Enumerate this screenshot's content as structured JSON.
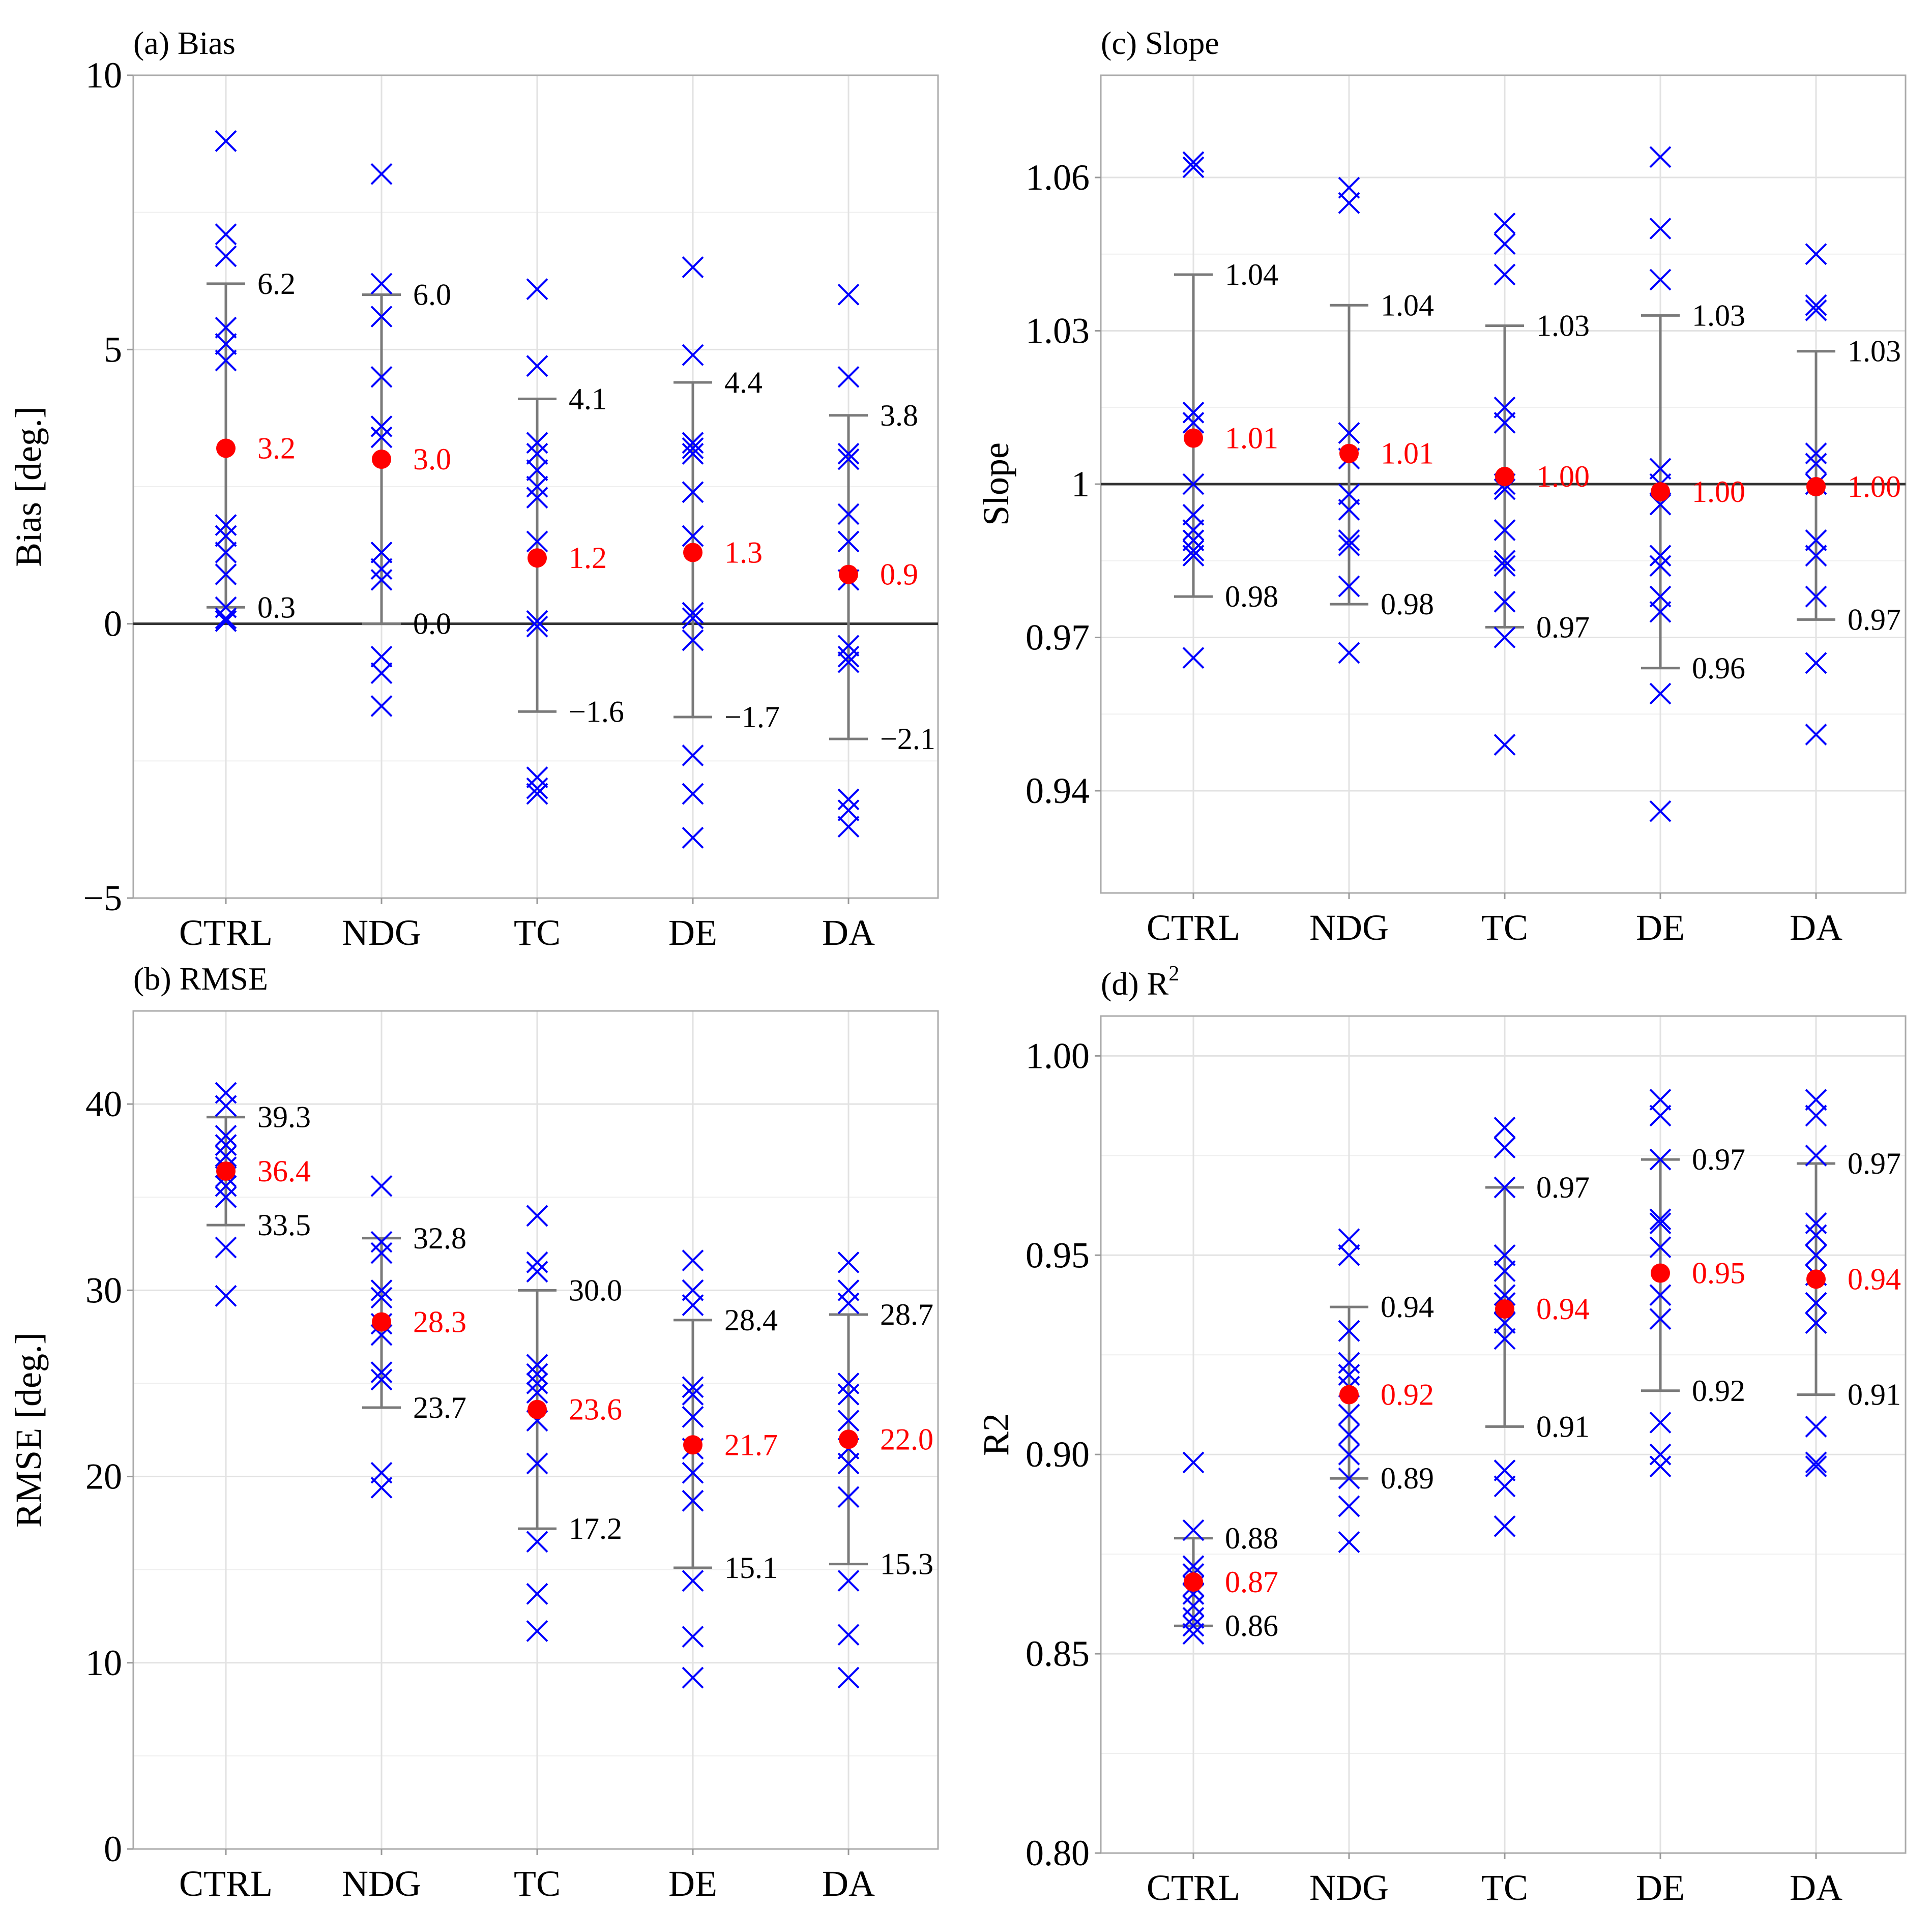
{
  "colors": {
    "crosses": "#0000ff",
    "mean": "#ff0000",
    "errorbar": "#7a7a7a",
    "refline": "#333333"
  },
  "chart_data": [
    {
      "id": "bias",
      "type": "scatter",
      "title": "(a) Bias",
      "ylabel": "Bias [deg.]",
      "categories": [
        "CTRL",
        "NDG",
        "TC",
        "DE",
        "DA"
      ],
      "ylim": [
        -5.0,
        10.0
      ],
      "yticks": [
        -5,
        0,
        5,
        10
      ],
      "ytick_labels": [
        "−5",
        "0",
        "5",
        "10"
      ],
      "reference_line": 0,
      "series": [
        {
          "category": "CTRL",
          "mean": 3.2,
          "upper": 6.2,
          "lower": 0.3,
          "mean_label": "3.2",
          "upper_label": "6.2",
          "lower_label": "0.3",
          "points": [
            8.8,
            7.1,
            6.7,
            5.4,
            5.1,
            4.8,
            1.8,
            1.6,
            1.3,
            0.9,
            0.3,
            0.1,
            0.05
          ]
        },
        {
          "category": "NDG",
          "mean": 3.0,
          "upper": 6.0,
          "lower": 0.0,
          "mean_label": "3.0",
          "upper_label": "6.0",
          "lower_label": "0.0",
          "points": [
            8.2,
            6.2,
            5.6,
            4.5,
            3.6,
            3.4,
            1.3,
            1.0,
            0.8,
            -0.6,
            -0.9,
            -1.5
          ]
        },
        {
          "category": "TC",
          "mean": 1.2,
          "upper": 4.1,
          "lower": -1.6,
          "mean_label": "1.2",
          "upper_label": "4.1",
          "lower_label": "−1.6",
          "points": [
            6.1,
            4.7,
            3.3,
            3.1,
            2.8,
            2.5,
            2.3,
            1.5,
            0.05,
            -0.05,
            -2.8,
            -3.0,
            -3.1
          ]
        },
        {
          "category": "DE",
          "mean": 1.3,
          "upper": 4.4,
          "lower": -1.7,
          "mean_label": "1.3",
          "upper_label": "4.4",
          "lower_label": "−1.7",
          "points": [
            6.5,
            4.9,
            3.3,
            3.2,
            3.1,
            2.4,
            1.6,
            0.2,
            0.1,
            -0.3,
            -2.4,
            -3.1,
            -3.9
          ]
        },
        {
          "category": "DA",
          "mean": 0.9,
          "upper": 3.8,
          "lower": -2.1,
          "mean_label": "0.9",
          "upper_label": "3.8",
          "lower_label": "−2.1",
          "points": [
            6.0,
            4.5,
            3.1,
            3.0,
            2.0,
            1.5,
            0.8,
            -0.4,
            -0.6,
            -0.7,
            -3.2,
            -3.4,
            -3.7
          ]
        }
      ]
    },
    {
      "id": "rmse",
      "type": "scatter",
      "title": "(b) RMSE",
      "ylabel": "RMSE [deg.]",
      "categories": [
        "CTRL",
        "NDG",
        "TC",
        "DE",
        "DA"
      ],
      "ylim": [
        0,
        45
      ],
      "yticks": [
        0,
        10,
        20,
        30,
        40
      ],
      "ytick_labels": [
        "0",
        "10",
        "20",
        "30",
        "40"
      ],
      "series": [
        {
          "category": "CTRL",
          "mean": 36.4,
          "upper": 39.3,
          "lower": 33.5,
          "mean_label": "36.4",
          "upper_label": "39.3",
          "lower_label": "33.5",
          "points": [
            40.6,
            39.9,
            38.3,
            37.8,
            37.2,
            36.6,
            36.1,
            35.6,
            35.0,
            32.3,
            29.7
          ]
        },
        {
          "category": "NDG",
          "mean": 28.3,
          "upper": 32.8,
          "lower": 23.7,
          "mean_label": "28.3",
          "upper_label": "32.8",
          "lower_label": "23.7",
          "points": [
            35.6,
            32.6,
            32.0,
            30.0,
            29.6,
            28.2,
            27.6,
            25.6,
            25.2,
            20.2,
            19.4
          ]
        },
        {
          "category": "TC",
          "mean": 23.6,
          "upper": 30.0,
          "lower": 17.2,
          "mean_label": "23.6",
          "upper_label": "30.0",
          "lower_label": "17.2",
          "points": [
            34.0,
            31.5,
            31.0,
            26.0,
            25.5,
            25.0,
            24.5,
            23.0,
            20.7,
            16.5,
            13.7,
            11.7
          ]
        },
        {
          "category": "DE",
          "mean": 21.7,
          "upper": 28.4,
          "lower": 15.1,
          "mean_label": "21.7",
          "upper_label": "28.4",
          "lower_label": "15.1",
          "points": [
            31.6,
            30.0,
            29.2,
            24.8,
            24.4,
            23.2,
            21.5,
            20.2,
            18.7,
            14.4,
            11.4,
            9.2
          ]
        },
        {
          "category": "DA",
          "mean": 22.0,
          "upper": 28.7,
          "lower": 15.3,
          "mean_label": "22.0",
          "upper_label": "28.7",
          "lower_label": "15.3",
          "points": [
            31.5,
            30.0,
            29.3,
            25.0,
            24.4,
            23.0,
            21.5,
            20.7,
            18.9,
            14.4,
            11.5,
            9.2
          ]
        }
      ]
    },
    {
      "id": "slope",
      "type": "scatter",
      "title": "(c) Slope",
      "ylabel": "Slope",
      "categories": [
        "CTRL",
        "NDG",
        "TC",
        "DE",
        "DA"
      ],
      "ylim": [
        0.92,
        1.08
      ],
      "yticks": [
        0.94,
        0.97,
        1.0,
        1.03,
        1.06
      ],
      "ytick_labels": [
        "0.94",
        "0.97",
        "1",
        "1.03",
        "1.06"
      ],
      "reference_line": 1.0,
      "series": [
        {
          "category": "CTRL",
          "mean": 1.009,
          "upper": 1.041,
          "lower": 0.978,
          "mean_label": "1.01",
          "upper_label": "1.04",
          "lower_label": "0.98",
          "points": [
            1.063,
            1.062,
            1.014,
            1.012,
            1.0,
            0.994,
            0.991,
            0.989,
            0.987,
            0.986,
            0.966
          ]
        },
        {
          "category": "NDG",
          "mean": 1.006,
          "upper": 1.035,
          "lower": 0.9765,
          "mean_label": "1.01",
          "upper_label": "1.04",
          "lower_label": "0.98",
          "points": [
            1.058,
            1.055,
            1.01,
            1.005,
            0.998,
            0.995,
            0.989,
            0.988,
            0.98,
            0.967
          ]
        },
        {
          "category": "TC",
          "mean": 1.0015,
          "upper": 1.031,
          "lower": 0.972,
          "mean_label": "1.00",
          "upper_label": "1.03",
          "lower_label": "0.97",
          "points": [
            1.051,
            1.047,
            1.041,
            1.015,
            1.012,
            1.0,
            0.999,
            0.991,
            0.985,
            0.984,
            0.977,
            0.97,
            0.949
          ]
        },
        {
          "category": "DE",
          "mean": 0.9985,
          "upper": 1.033,
          "lower": 0.964,
          "mean_label": "1.00",
          "upper_label": "1.03",
          "lower_label": "0.96",
          "points": [
            1.064,
            1.05,
            1.04,
            1.003,
            1.0,
            0.996,
            0.986,
            0.984,
            0.978,
            0.975,
            0.959,
            0.936
          ]
        },
        {
          "category": "DA",
          "mean": 0.9995,
          "upper": 1.026,
          "lower": 0.9735,
          "mean_label": "1.00",
          "upper_label": "1.03",
          "lower_label": "0.97",
          "points": [
            1.045,
            1.035,
            1.034,
            1.006,
            1.004,
            1.0,
            0.989,
            0.986,
            0.978,
            0.965,
            0.951
          ]
        }
      ]
    },
    {
      "id": "r2",
      "type": "scatter",
      "title": "(d) R",
      "title_sup": "2",
      "ylabel": "R2",
      "categories": [
        "CTRL",
        "NDG",
        "TC",
        "DE",
        "DA"
      ],
      "ylim": [
        0.8,
        1.01
      ],
      "yticks": [
        0.8,
        0.85,
        0.9,
        0.95,
        1.0
      ],
      "ytick_labels": [
        "0.80",
        "0.85",
        "0.90",
        "0.95",
        "1.00"
      ],
      "series": [
        {
          "category": "CTRL",
          "mean": 0.868,
          "upper": 0.879,
          "lower": 0.857,
          "mean_label": "0.87",
          "upper_label": "0.88",
          "lower_label": "0.86",
          "points": [
            0.898,
            0.881,
            0.872,
            0.87,
            0.867,
            0.865,
            0.862,
            0.859,
            0.857,
            0.855
          ]
        },
        {
          "category": "NDG",
          "mean": 0.915,
          "upper": 0.937,
          "lower": 0.894,
          "mean_label": "0.92",
          "upper_label": "0.94",
          "lower_label": "0.89",
          "points": [
            0.954,
            0.95,
            0.931,
            0.923,
            0.92,
            0.917,
            0.91,
            0.905,
            0.9,
            0.894,
            0.887,
            0.878
          ]
        },
        {
          "category": "TC",
          "mean": 0.9365,
          "upper": 0.967,
          "lower": 0.907,
          "mean_label": "0.94",
          "upper_label": "0.97",
          "lower_label": "0.91",
          "points": [
            0.982,
            0.977,
            0.967,
            0.95,
            0.946,
            0.94,
            0.938,
            0.933,
            0.929,
            0.896,
            0.892,
            0.882
          ]
        },
        {
          "category": "DE",
          "mean": 0.9455,
          "upper": 0.974,
          "lower": 0.916,
          "mean_label": "0.95",
          "upper_label": "0.97",
          "lower_label": "0.92",
          "points": [
            0.989,
            0.985,
            0.974,
            0.959,
            0.958,
            0.952,
            0.94,
            0.934,
            0.908,
            0.9,
            0.897
          ]
        },
        {
          "category": "DA",
          "mean": 0.944,
          "upper": 0.973,
          "lower": 0.915,
          "mean_label": "0.94",
          "upper_label": "0.97",
          "lower_label": "0.91",
          "points": [
            0.989,
            0.985,
            0.975,
            0.958,
            0.955,
            0.95,
            0.945,
            0.938,
            0.933,
            0.907,
            0.898,
            0.897
          ]
        }
      ]
    }
  ]
}
